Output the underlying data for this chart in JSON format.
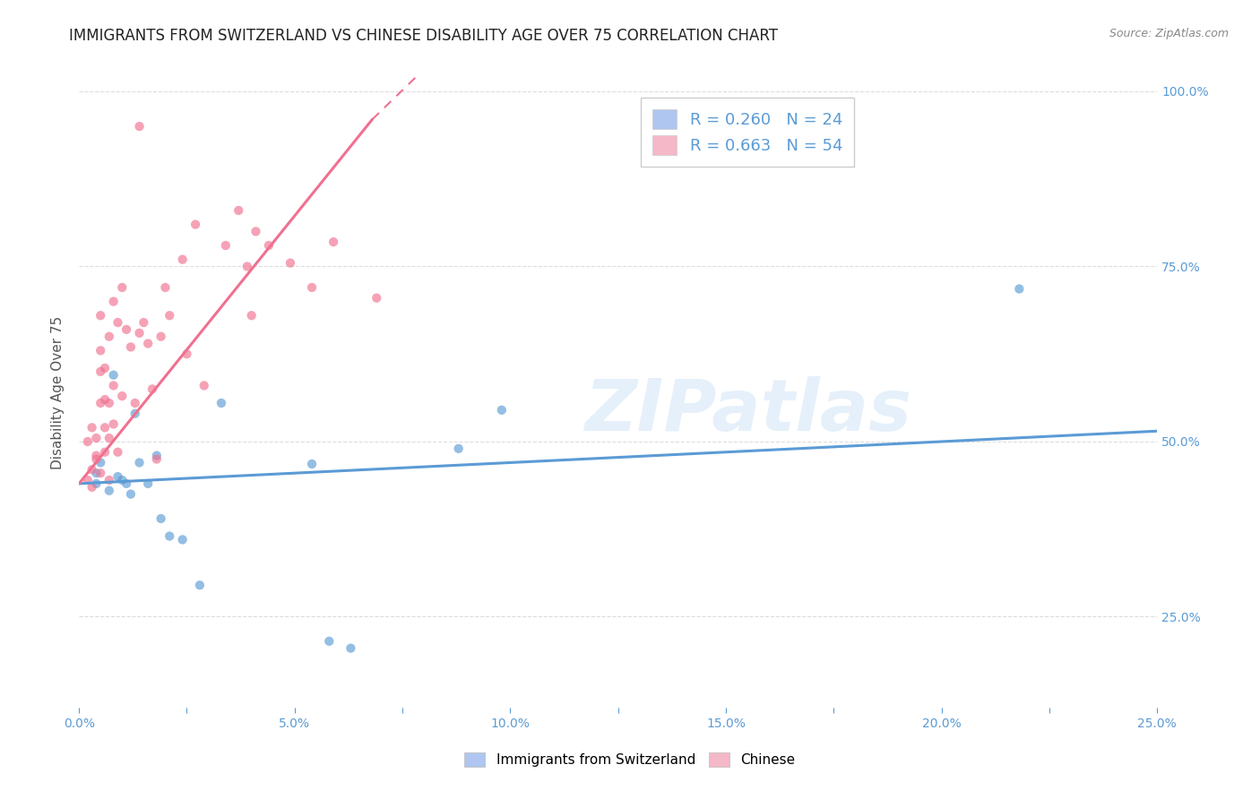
{
  "title": "IMMIGRANTS FROM SWITZERLAND VS CHINESE DISABILITY AGE OVER 75 CORRELATION CHART",
  "source": "Source: ZipAtlas.com",
  "ylabel": "Disability Age Over 75",
  "xlim": [
    0.0,
    0.25
  ],
  "ylim": [
    0.12,
    1.02
  ],
  "xtick_labels": [
    "0.0%",
    "",
    "5.0%",
    "",
    "10.0%",
    "",
    "15.0%",
    "",
    "20.0%",
    "",
    "25.0%"
  ],
  "xtick_vals": [
    0.0,
    0.025,
    0.05,
    0.075,
    0.1,
    0.125,
    0.15,
    0.175,
    0.2,
    0.225,
    0.25
  ],
  "ytick_labels": [
    "25.0%",
    "50.0%",
    "75.0%",
    "100.0%"
  ],
  "ytick_vals": [
    0.25,
    0.5,
    0.75,
    1.0
  ],
  "watermark": "ZIPatlas",
  "legend_entries": [
    {
      "label": "R = 0.260   N = 24",
      "color": "#aec6f0"
    },
    {
      "label": "R = 0.663   N = 54",
      "color": "#f4b8c8"
    }
  ],
  "swiss_color": "#5b9bd5",
  "chinese_color": "#f07090",
  "swiss_scatter": [
    [
      0.004,
      0.455
    ],
    [
      0.004,
      0.44
    ],
    [
      0.005,
      0.47
    ],
    [
      0.007,
      0.43
    ],
    [
      0.008,
      0.595
    ],
    [
      0.009,
      0.45
    ],
    [
      0.01,
      0.445
    ],
    [
      0.011,
      0.44
    ],
    [
      0.012,
      0.425
    ],
    [
      0.013,
      0.54
    ],
    [
      0.014,
      0.47
    ],
    [
      0.016,
      0.44
    ],
    [
      0.018,
      0.48
    ],
    [
      0.019,
      0.39
    ],
    [
      0.021,
      0.365
    ],
    [
      0.024,
      0.36
    ],
    [
      0.028,
      0.295
    ],
    [
      0.033,
      0.555
    ],
    [
      0.054,
      0.468
    ],
    [
      0.058,
      0.215
    ],
    [
      0.063,
      0.205
    ],
    [
      0.088,
      0.49
    ],
    [
      0.098,
      0.545
    ],
    [
      0.218,
      0.718
    ]
  ],
  "chinese_scatter": [
    [
      0.002,
      0.445
    ],
    [
      0.002,
      0.5
    ],
    [
      0.003,
      0.46
    ],
    [
      0.003,
      0.435
    ],
    [
      0.003,
      0.52
    ],
    [
      0.004,
      0.48
    ],
    [
      0.004,
      0.475
    ],
    [
      0.004,
      0.505
    ],
    [
      0.005,
      0.555
    ],
    [
      0.005,
      0.6
    ],
    [
      0.005,
      0.63
    ],
    [
      0.005,
      0.455
    ],
    [
      0.005,
      0.68
    ],
    [
      0.006,
      0.52
    ],
    [
      0.006,
      0.485
    ],
    [
      0.006,
      0.56
    ],
    [
      0.006,
      0.605
    ],
    [
      0.007,
      0.445
    ],
    [
      0.007,
      0.505
    ],
    [
      0.007,
      0.555
    ],
    [
      0.007,
      0.65
    ],
    [
      0.008,
      0.525
    ],
    [
      0.008,
      0.58
    ],
    [
      0.008,
      0.7
    ],
    [
      0.009,
      0.485
    ],
    [
      0.009,
      0.67
    ],
    [
      0.01,
      0.565
    ],
    [
      0.01,
      0.72
    ],
    [
      0.011,
      0.66
    ],
    [
      0.012,
      0.635
    ],
    [
      0.013,
      0.555
    ],
    [
      0.014,
      0.655
    ],
    [
      0.015,
      0.67
    ],
    [
      0.016,
      0.64
    ],
    [
      0.017,
      0.575
    ],
    [
      0.018,
      0.475
    ],
    [
      0.019,
      0.65
    ],
    [
      0.02,
      0.72
    ],
    [
      0.021,
      0.68
    ],
    [
      0.024,
      0.76
    ],
    [
      0.025,
      0.625
    ],
    [
      0.027,
      0.81
    ],
    [
      0.029,
      0.58
    ],
    [
      0.034,
      0.78
    ],
    [
      0.037,
      0.83
    ],
    [
      0.039,
      0.75
    ],
    [
      0.04,
      0.68
    ],
    [
      0.041,
      0.8
    ],
    [
      0.044,
      0.78
    ],
    [
      0.049,
      0.755
    ],
    [
      0.054,
      0.72
    ],
    [
      0.059,
      0.785
    ],
    [
      0.069,
      0.705
    ],
    [
      0.014,
      0.95
    ]
  ],
  "swiss_trendline": {
    "x": [
      0.0,
      0.25
    ],
    "y": [
      0.44,
      0.515
    ]
  },
  "chinese_trendline_solid": {
    "x": [
      0.0,
      0.068
    ],
    "y": [
      0.44,
      0.96
    ]
  },
  "chinese_trendline_dashed": {
    "x": [
      0.068,
      0.125
    ],
    "y": [
      0.96,
      1.3
    ]
  },
  "background_color": "#ffffff",
  "grid_color": "#dddddd",
  "title_fontsize": 12,
  "label_fontsize": 11,
  "tick_fontsize": 10,
  "scatter_size": 55,
  "scatter_alpha": 0.65
}
